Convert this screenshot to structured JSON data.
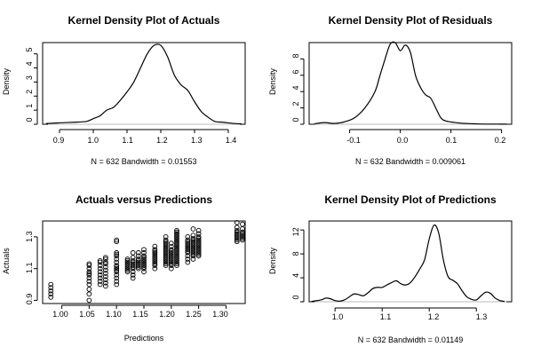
{
  "chart_data": [
    {
      "type": "line",
      "title": "Kernel Density Plot of Actuals",
      "xlabel": "N = 632   Bandwidth = 0.01553",
      "ylabel": "Density",
      "xlim": [
        0.85,
        1.45
      ],
      "ylim": [
        0,
        5.8
      ],
      "xticks": [
        "0.9",
        "1.0",
        "1.1",
        "1.2",
        "1.3",
        "1.4"
      ],
      "yticks": [
        "0",
        "1",
        "2",
        "3",
        "4",
        "5"
      ],
      "x": [
        0.86,
        0.9,
        0.95,
        0.98,
        1.0,
        1.02,
        1.04,
        1.06,
        1.08,
        1.1,
        1.12,
        1.14,
        1.16,
        1.18,
        1.2,
        1.22,
        1.24,
        1.26,
        1.28,
        1.3,
        1.32,
        1.34,
        1.36,
        1.38,
        1.4,
        1.42,
        1.44
      ],
      "y": [
        0.05,
        0.1,
        0.15,
        0.2,
        0.4,
        0.6,
        1.0,
        1.2,
        1.7,
        2.3,
        3.0,
        4.0,
        5.0,
        5.6,
        5.6,
        4.8,
        3.5,
        2.8,
        2.4,
        1.6,
        0.9,
        0.5,
        0.2,
        0.15,
        0.1,
        0.05,
        0.02
      ]
    },
    {
      "type": "line",
      "title": "Kernel Density Plot of Residuals",
      "xlabel": "N = 632   Bandwidth = 0.009061",
      "ylabel": "Density",
      "xlim": [
        -0.18,
        0.22
      ],
      "ylim": [
        0,
        10
      ],
      "xticks": [
        "-0.1",
        "0.0",
        "0.1",
        "0.2"
      ],
      "yticks": [
        "0",
        "2",
        "4",
        "6",
        "8"
      ],
      "x": [
        -0.17,
        -0.15,
        -0.13,
        -0.11,
        -0.09,
        -0.07,
        -0.05,
        -0.04,
        -0.03,
        -0.02,
        -0.01,
        0.0,
        0.01,
        0.02,
        0.03,
        0.04,
        0.05,
        0.06,
        0.07,
        0.08,
        0.09,
        0.11,
        0.13,
        0.15,
        0.17,
        0.19,
        0.21
      ],
      "y": [
        0.05,
        0.2,
        0.1,
        0.3,
        0.8,
        2.0,
        4.0,
        6.0,
        8.0,
        9.8,
        10.0,
        9.0,
        9.7,
        8.8,
        6.0,
        4.5,
        3.6,
        3.2,
        2.0,
        0.8,
        0.4,
        0.2,
        0.1,
        0.05,
        0.02,
        0.02,
        0.01
      ]
    },
    {
      "type": "scatter",
      "title": "Actuals versus Predictions",
      "xlabel": "Predictions",
      "ylabel": "Actuals",
      "xlim": [
        0.965,
        1.335
      ],
      "ylim": [
        0.88,
        1.4
      ],
      "xticks": [
        "1.00",
        "1.05",
        "1.10",
        "1.15",
        "1.20",
        "1.25",
        "1.30"
      ],
      "yticks": [
        "0.9",
        "1.1",
        "1.3"
      ],
      "x": [
        0.98,
        0.98,
        0.98,
        0.98,
        0.98,
        1.05,
        1.05,
        1.05,
        1.05,
        1.05,
        1.05,
        1.05,
        1.05,
        1.05,
        1.05,
        1.05,
        1.05,
        1.07,
        1.07,
        1.07,
        1.07,
        1.07,
        1.07,
        1.07,
        1.07,
        1.07,
        1.08,
        1.08,
        1.08,
        1.08,
        1.08,
        1.08,
        1.08,
        1.08,
        1.08,
        1.08,
        1.08,
        1.1,
        1.1,
        1.1,
        1.1,
        1.1,
        1.1,
        1.1,
        1.1,
        1.1,
        1.1,
        1.1,
        1.1,
        1.1,
        1.1,
        1.1,
        1.1,
        1.12,
        1.12,
        1.12,
        1.12,
        1.12,
        1.12,
        1.12,
        1.12,
        1.12,
        1.13,
        1.13,
        1.13,
        1.13,
        1.13,
        1.13,
        1.13,
        1.13,
        1.13,
        1.13,
        1.13,
        1.14,
        1.14,
        1.14,
        1.14,
        1.14,
        1.14,
        1.14,
        1.14,
        1.14,
        1.15,
        1.15,
        1.15,
        1.15,
        1.15,
        1.15,
        1.15,
        1.15,
        1.15,
        1.15,
        1.15,
        1.15,
        1.17,
        1.17,
        1.17,
        1.17,
        1.17,
        1.17,
        1.17,
        1.17,
        1.17,
        1.17,
        1.17,
        1.17,
        1.17,
        1.19,
        1.19,
        1.19,
        1.19,
        1.19,
        1.19,
        1.19,
        1.19,
        1.19,
        1.19,
        1.19,
        1.19,
        1.19,
        1.19,
        1.19,
        1.19,
        1.19,
        1.19,
        1.2,
        1.2,
        1.2,
        1.2,
        1.2,
        1.2,
        1.2,
        1.2,
        1.2,
        1.2,
        1.2,
        1.2,
        1.2,
        1.2,
        1.21,
        1.21,
        1.21,
        1.21,
        1.21,
        1.21,
        1.21,
        1.21,
        1.21,
        1.21,
        1.21,
        1.21,
        1.21,
        1.21,
        1.21,
        1.21,
        1.21,
        1.21,
        1.21,
        1.21,
        1.21,
        1.21,
        1.21,
        1.23,
        1.23,
        1.23,
        1.23,
        1.23,
        1.23,
        1.23,
        1.23,
        1.23,
        1.23,
        1.23,
        1.23,
        1.23,
        1.24,
        1.24,
        1.24,
        1.24,
        1.24,
        1.24,
        1.24,
        1.24,
        1.24,
        1.24,
        1.24,
        1.24,
        1.24,
        1.24,
        1.24,
        1.25,
        1.25,
        1.25,
        1.25,
        1.25,
        1.25,
        1.25,
        1.25,
        1.25,
        1.25,
        1.25,
        1.25,
        1.25,
        1.25,
        1.25,
        1.32,
        1.32,
        1.32,
        1.32,
        1.32,
        1.32,
        1.32,
        1.32,
        1.32,
        1.32,
        1.33,
        1.33,
        1.33,
        1.33,
        1.33,
        1.33,
        1.33,
        1.33
      ],
      "y": [
        0.92,
        0.94,
        0.96,
        0.98,
        1.0,
        0.9,
        0.94,
        0.97,
        1.0,
        1.02,
        1.04,
        1.06,
        1.07,
        1.08,
        1.1,
        1.12,
        1.13,
        1.0,
        1.02,
        1.04,
        1.06,
        1.08,
        1.1,
        1.12,
        1.14,
        1.15,
        0.99,
        1.01,
        1.03,
        1.05,
        1.07,
        1.09,
        1.11,
        1.13,
        1.14,
        1.16,
        1.17,
        1.0,
        1.02,
        1.04,
        1.06,
        1.08,
        1.09,
        1.1,
        1.11,
        1.12,
        1.14,
        1.16,
        1.18,
        1.19,
        1.2,
        1.27,
        1.28,
        1.08,
        1.09,
        1.1,
        1.11,
        1.12,
        1.13,
        1.14,
        1.15,
        1.16,
        1.04,
        1.06,
        1.08,
        1.1,
        1.11,
        1.12,
        1.13,
        1.14,
        1.15,
        1.17,
        1.2,
        1.1,
        1.11,
        1.12,
        1.13,
        1.14,
        1.15,
        1.16,
        1.18,
        1.2,
        1.08,
        1.1,
        1.11,
        1.12,
        1.13,
        1.14,
        1.15,
        1.16,
        1.17,
        1.18,
        1.2,
        1.22,
        1.1,
        1.12,
        1.13,
        1.14,
        1.15,
        1.16,
        1.17,
        1.18,
        1.19,
        1.2,
        1.21,
        1.22,
        1.24,
        1.12,
        1.13,
        1.14,
        1.15,
        1.16,
        1.17,
        1.18,
        1.19,
        1.2,
        1.21,
        1.22,
        1.23,
        1.24,
        1.25,
        1.26,
        1.27,
        1.28,
        1.3,
        1.1,
        1.12,
        1.13,
        1.14,
        1.15,
        1.16,
        1.17,
        1.18,
        1.19,
        1.2,
        1.21,
        1.22,
        1.24,
        1.26,
        1.12,
        1.13,
        1.14,
        1.15,
        1.16,
        1.17,
        1.18,
        1.19,
        1.2,
        1.21,
        1.22,
        1.23,
        1.24,
        1.25,
        1.26,
        1.27,
        1.28,
        1.29,
        1.3,
        1.31,
        1.32,
        1.33,
        1.34,
        1.14,
        1.16,
        1.18,
        1.2,
        1.21,
        1.22,
        1.23,
        1.24,
        1.25,
        1.26,
        1.27,
        1.28,
        1.3,
        1.16,
        1.18,
        1.19,
        1.2,
        1.21,
        1.22,
        1.23,
        1.24,
        1.25,
        1.26,
        1.27,
        1.28,
        1.29,
        1.31,
        1.35,
        1.18,
        1.19,
        1.2,
        1.21,
        1.22,
        1.23,
        1.24,
        1.25,
        1.26,
        1.27,
        1.28,
        1.29,
        1.3,
        1.32,
        1.34,
        1.27,
        1.28,
        1.29,
        1.3,
        1.31,
        1.32,
        1.33,
        1.34,
        1.36,
        1.39,
        1.28,
        1.29,
        1.3,
        1.31,
        1.32,
        1.33,
        1.35,
        1.38
      ]
    },
    {
      "type": "line",
      "title": "Kernel Density Plot of Predictions",
      "xlabel": "N = 632   Bandwidth = 0.01149",
      "ylabel": "Density",
      "xlim": [
        0.945,
        1.375
      ],
      "ylim": [
        0,
        13.5
      ],
      "xticks": [
        "1.0",
        "1.1",
        "1.2",
        "1.3"
      ],
      "yticks": [
        "0",
        "4",
        "8",
        "12"
      ],
      "x": [
        0.95,
        0.97,
        0.98,
        0.99,
        1.0,
        1.01,
        1.02,
        1.03,
        1.04,
        1.05,
        1.06,
        1.07,
        1.08,
        1.09,
        1.1,
        1.11,
        1.12,
        1.13,
        1.14,
        1.15,
        1.16,
        1.17,
        1.18,
        1.19,
        1.2,
        1.21,
        1.22,
        1.23,
        1.24,
        1.25,
        1.26,
        1.27,
        1.28,
        1.29,
        1.3,
        1.31,
        1.32,
        1.33,
        1.34,
        1.35,
        1.36
      ],
      "y": [
        0.05,
        0.3,
        0.6,
        0.5,
        0.2,
        0.1,
        0.3,
        0.8,
        1.3,
        1.2,
        1.0,
        1.5,
        2.2,
        2.4,
        2.4,
        2.8,
        3.2,
        3.5,
        3.0,
        2.8,
        3.2,
        4.2,
        5.5,
        7.0,
        10.5,
        12.8,
        11.5,
        7.0,
        4.2,
        3.6,
        3.0,
        1.8,
        0.8,
        0.4,
        0.3,
        1.0,
        1.6,
        1.4,
        0.6,
        0.2,
        0.05
      ]
    }
  ]
}
